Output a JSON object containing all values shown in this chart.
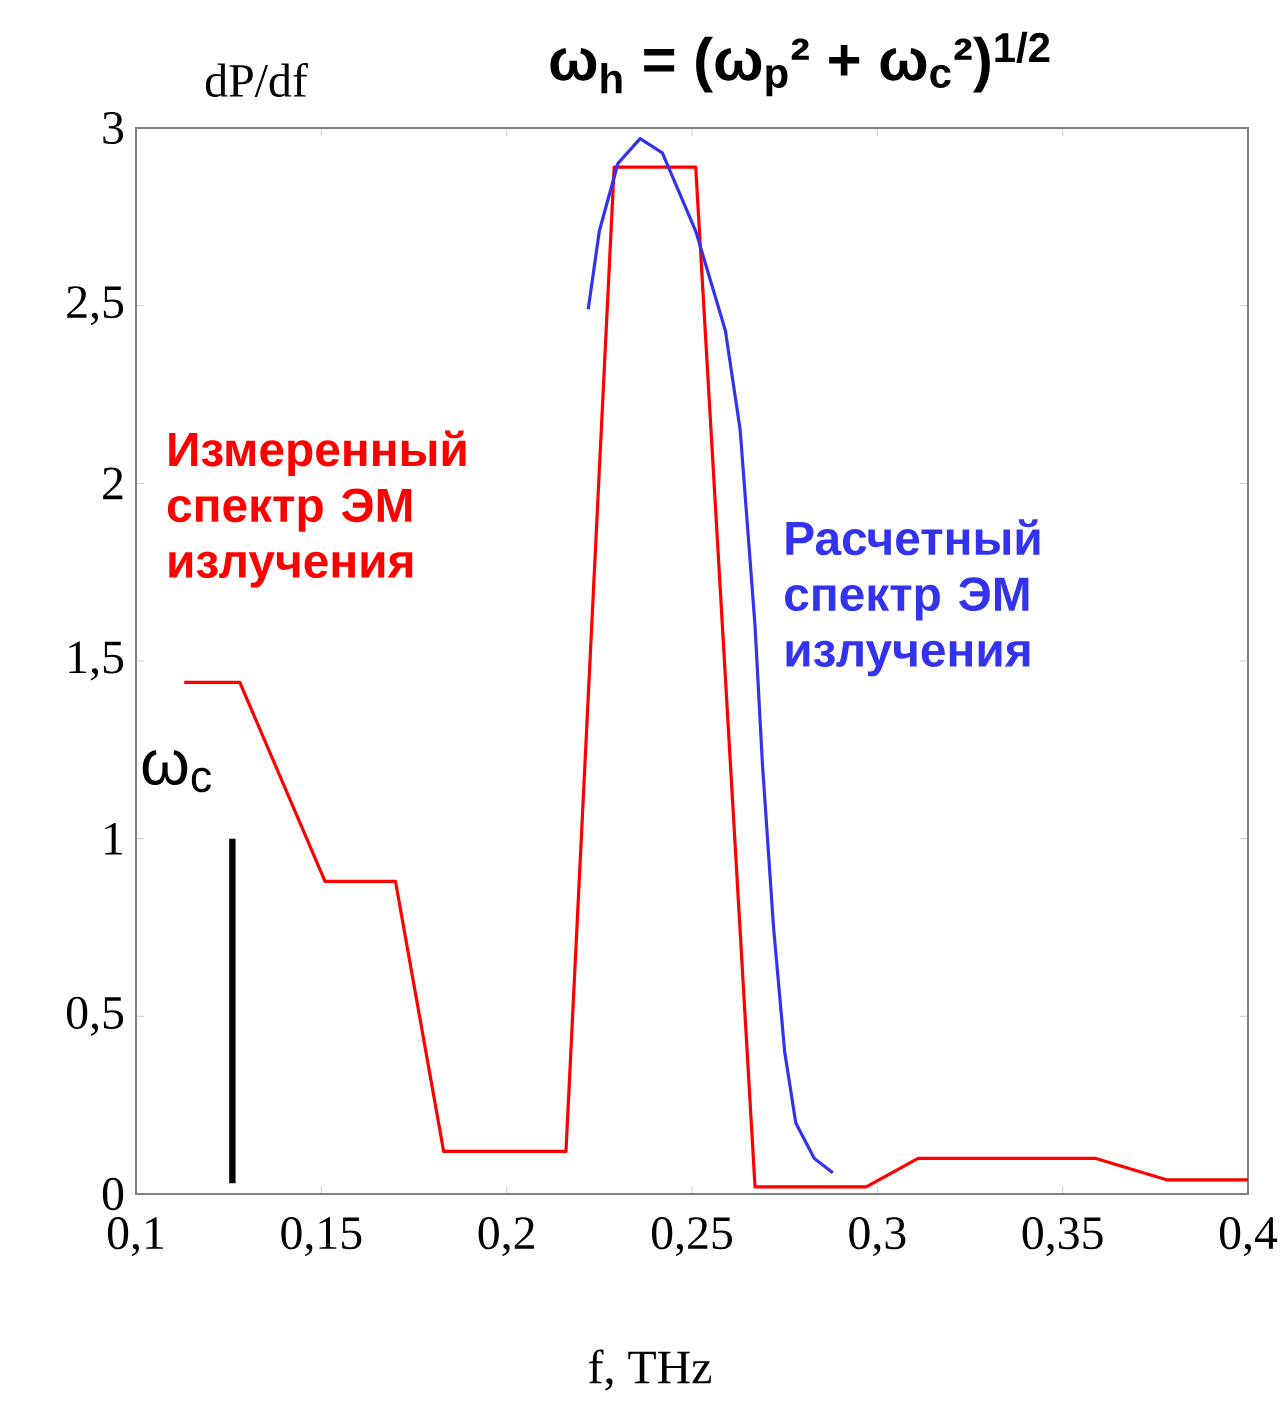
{
  "chart_data": {
    "type": "line",
    "title": "ω$_{h}$ = (ω$_{p}$² + ω$_{c}$²)$^{1/2}$",
    "xlabel": "f, THz",
    "ylabel": "dP/df",
    "xlim": [
      0.1,
      0.4
    ],
    "ylim": [
      0,
      3
    ],
    "xticks": [
      {
        "value": 0.1,
        "label": "0,1"
      },
      {
        "value": 0.15,
        "label": "0,15"
      },
      {
        "value": 0.2,
        "label": "0,2"
      },
      {
        "value": 0.25,
        "label": "0,25"
      },
      {
        "value": 0.3,
        "label": "0,3"
      },
      {
        "value": 0.35,
        "label": "0,35"
      },
      {
        "value": 0.4,
        "label": "0,4"
      }
    ],
    "yticks": [
      0,
      {
        "value": 0.5,
        "label": "0,5"
      },
      1,
      {
        "value": 1.5,
        "label": "1,5"
      },
      2,
      {
        "value": 2.5,
        "label": "2,5"
      },
      3
    ],
    "series": [
      {
        "name": "Измеренный спектр ЭМ излучения",
        "color": "#ff0000",
        "x": [
          0.113,
          0.128,
          0.151,
          0.17,
          0.183,
          0.216,
          0.229,
          0.251,
          0.267,
          0.297,
          0.311,
          0.359,
          0.378,
          0.4
        ],
        "values": [
          1.44,
          1.44,
          0.88,
          0.88,
          0.12,
          0.12,
          2.89,
          2.89,
          0.02,
          0.02,
          0.1,
          0.1,
          0.04,
          0.04
        ]
      },
      {
        "name": "Расчетный спектр ЭМ излучения",
        "color": "#3333ee",
        "x": [
          0.222,
          0.225,
          0.23,
          0.236,
          0.242,
          0.251,
          0.259,
          0.263,
          0.267,
          0.269,
          0.272,
          0.275,
          0.278,
          0.283,
          0.288
        ],
        "values": [
          2.49,
          2.71,
          2.9,
          2.97,
          2.93,
          2.71,
          2.43,
          2.15,
          1.6,
          1.21,
          0.75,
          0.4,
          0.2,
          0.1,
          0.06
        ]
      },
      {
        "name": "ω$_{c}$",
        "color": "#000000",
        "x": [
          0.126,
          0.126
        ],
        "values": [
          0.03,
          1.0
        ]
      }
    ]
  }
}
